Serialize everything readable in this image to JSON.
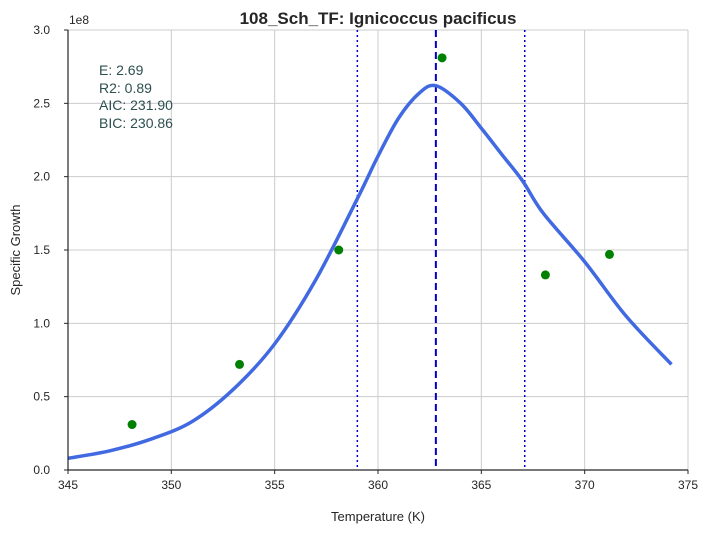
{
  "chart_data": {
    "type": "line",
    "title": "108_Sch_TF: Ignicoccus pacificus",
    "xlabel": "Temperature (K)",
    "ylabel": "Specific Growth",
    "y_offset_label": "1e8",
    "xlim": [
      345,
      375
    ],
    "ylim": [
      0,
      3.0
    ],
    "x_ticks": [
      "345",
      "350",
      "355",
      "360",
      "365",
      "370",
      "375"
    ],
    "y_ticks": [
      "0.0",
      "0.5",
      "1.0",
      "1.5",
      "2.0",
      "2.5",
      "3.0"
    ],
    "grid": true,
    "stats": [
      "E:  2.69",
      "R2:  0.89",
      "AIC: 231.90",
      "BIC: 230.86"
    ],
    "fit_curve": {
      "x": [
        345,
        347,
        349,
        351,
        353,
        355,
        357,
        359,
        360,
        361,
        362,
        362.8,
        364,
        365,
        366,
        367,
        368,
        370,
        372,
        374.2
      ],
      "y": [
        0.08,
        0.13,
        0.21,
        0.33,
        0.55,
        0.86,
        1.3,
        1.85,
        2.14,
        2.4,
        2.57,
        2.62,
        2.5,
        2.33,
        2.15,
        1.97,
        1.75,
        1.42,
        1.05,
        0.72
      ]
    },
    "observed": {
      "x": [
        348.1,
        353.3,
        358.1,
        363.1,
        368.1,
        371.2
      ],
      "y": [
        0.31,
        0.72,
        1.5,
        2.81,
        1.33,
        1.47
      ]
    },
    "vlines": {
      "peak": 362.8,
      "lower": 359.0,
      "upper": 367.1
    },
    "colors": {
      "fit": "#4169e1",
      "points": "#008000",
      "vlines": "#0000cd",
      "grid": "#cccccc",
      "axes": "#262626",
      "stats_text": "#2f4f4f"
    }
  }
}
